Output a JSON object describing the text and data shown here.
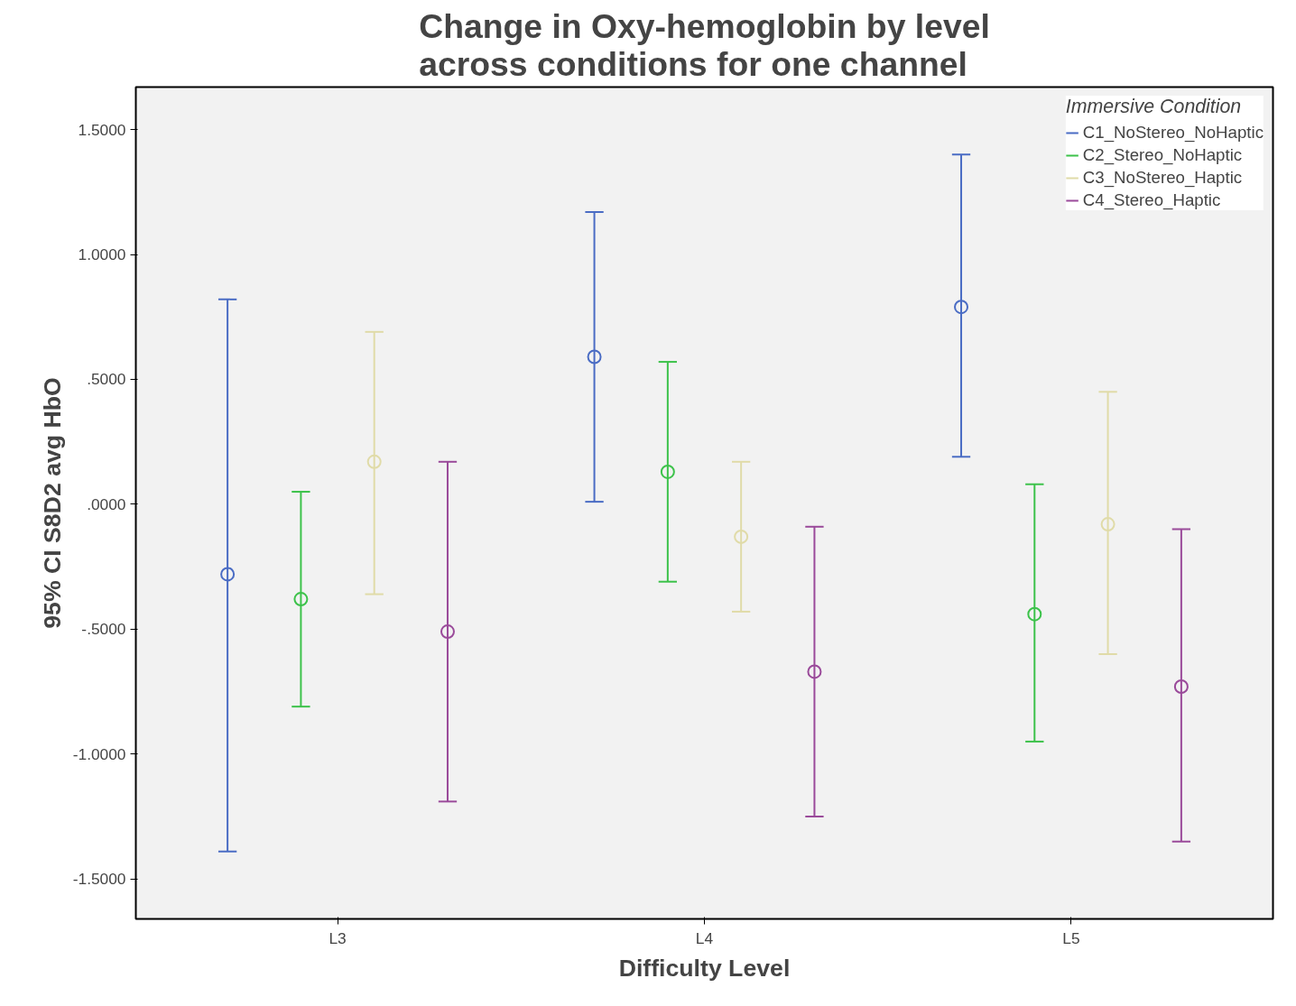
{
  "chart_data": {
    "type": "scatter",
    "title": "Change in Oxy-hemoglobin by level across conditions for one channel",
    "xlabel": "Difficulty Level",
    "ylabel": "95% CI S8D2 avg HbO",
    "legend_title": "Immersive Condition",
    "categories": [
      "L3",
      "L4",
      "L5"
    ],
    "ylim": [
      -1.66,
      1.67
    ],
    "yticks": [
      {
        "value": 1.5,
        "label": "1.5000"
      },
      {
        "value": 1,
        "label": "1.0000"
      },
      {
        "value": 0.5,
        "label": ".5000"
      },
      {
        "value": 0,
        "label": ".0000"
      },
      {
        "value": -0.5,
        "label": "-.5000"
      },
      {
        "value": -1,
        "label": "-1.0000"
      },
      {
        "value": -1.5,
        "label": "-1.5000"
      }
    ],
    "grid": false,
    "legend": "top right",
    "marker": "circle",
    "series": [
      {
        "name": "C1_NoStereo_NoHaptic",
        "color": "#4a6cc4",
        "values": [
          -0.28,
          0.59,
          0.79
        ],
        "errors": [
          [
            -1.39,
            0.82
          ],
          [
            0.01,
            1.17
          ],
          [
            0.19,
            1.4
          ]
        ]
      },
      {
        "name": "C2_Stereo_NoHaptic",
        "color": "#3cc24a",
        "values": [
          -0.38,
          0.13,
          -0.44
        ],
        "errors": [
          [
            -0.81,
            0.05
          ],
          [
            -0.31,
            0.57
          ],
          [
            -0.95,
            0.08
          ]
        ]
      },
      {
        "name": "C3_NoStereo_Haptic",
        "color": "#e0dba8",
        "values": [
          0.17,
          -0.13,
          -0.08
        ],
        "errors": [
          [
            -0.36,
            0.69
          ],
          [
            -0.43,
            0.17
          ],
          [
            -0.6,
            0.45
          ]
        ]
      },
      {
        "name": "C4_Stereo_Haptic",
        "color": "#9a4a9a",
        "values": [
          -0.51,
          -0.67,
          -0.73
        ],
        "errors": [
          [
            -1.19,
            0.17
          ],
          [
            -1.25,
            -0.09
          ],
          [
            -1.35,
            -0.1
          ]
        ]
      }
    ]
  }
}
